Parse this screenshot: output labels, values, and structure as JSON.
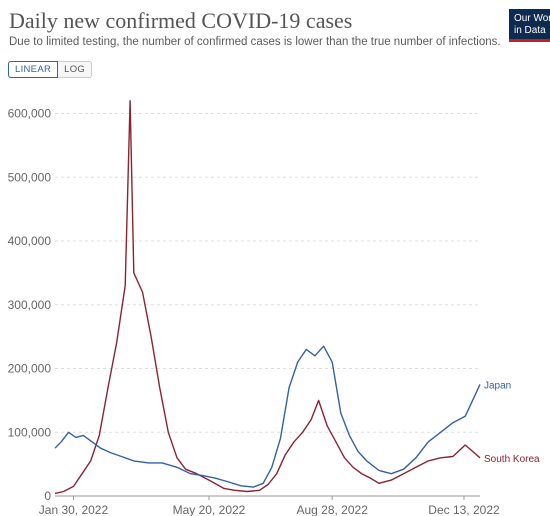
{
  "header": {
    "title": "Daily new confirmed COVID-19 cases",
    "subtitle": "Due to limited testing, the number of confirmed cases is lower than the true number of infections.",
    "logo_line1": "Our World",
    "logo_line2": "in Data"
  },
  "controls": {
    "linear_label": "LINEAR",
    "log_label": "LOG",
    "selected": "LINEAR"
  },
  "colors": {
    "japan": "#3360a9",
    "south_korea": "#8b2332",
    "grid": "#dddddd",
    "logo_bg": "#0e2b4f",
    "logo_accent": "#c0212b"
  },
  "chart_data": {
    "type": "line",
    "x_start": "2022-01-15",
    "x_end": "2022-12-26",
    "ylim": [
      0,
      640000
    ],
    "y_ticks": [
      0,
      100000,
      200000,
      300000,
      400000,
      500000,
      600000
    ],
    "y_tick_labels": [
      "0",
      "100,000",
      "200,000",
      "300,000",
      "400,000",
      "500,000",
      "600,000"
    ],
    "x_ticks": [
      "2022-01-30",
      "2022-05-20",
      "2022-08-28",
      "2022-12-13"
    ],
    "x_tick_labels": [
      "Jan 30, 2022",
      "May 20, 2022",
      "Aug 28, 2022",
      "Dec 13, 2022"
    ],
    "gridlines": true,
    "series": [
      {
        "name": "Japan",
        "color": "#3360a9",
        "end_label": "Japan",
        "points": [
          [
            "2022-01-15",
            75000
          ],
          [
            "2022-01-20",
            85000
          ],
          [
            "2022-01-26",
            100000
          ],
          [
            "2022-02-01",
            92000
          ],
          [
            "2022-02-07",
            95000
          ],
          [
            "2022-02-14",
            85000
          ],
          [
            "2022-02-21",
            75000
          ],
          [
            "2022-03-01",
            68000
          ],
          [
            "2022-03-10",
            62000
          ],
          [
            "2022-03-20",
            55000
          ],
          [
            "2022-04-01",
            52000
          ],
          [
            "2022-04-12",
            52000
          ],
          [
            "2022-04-24",
            45000
          ],
          [
            "2022-05-05",
            35000
          ],
          [
            "2022-05-15",
            32000
          ],
          [
            "2022-05-25",
            28000
          ],
          [
            "2022-06-05",
            22000
          ],
          [
            "2022-06-15",
            16000
          ],
          [
            "2022-06-25",
            14000
          ],
          [
            "2022-07-03",
            20000
          ],
          [
            "2022-07-10",
            45000
          ],
          [
            "2022-07-17",
            90000
          ],
          [
            "2022-07-24",
            170000
          ],
          [
            "2022-07-31",
            210000
          ],
          [
            "2022-08-07",
            230000
          ],
          [
            "2022-08-14",
            220000
          ],
          [
            "2022-08-21",
            235000
          ],
          [
            "2022-08-28",
            210000
          ],
          [
            "2022-09-04",
            130000
          ],
          [
            "2022-09-11",
            95000
          ],
          [
            "2022-09-18",
            70000
          ],
          [
            "2022-09-25",
            55000
          ],
          [
            "2022-10-05",
            40000
          ],
          [
            "2022-10-15",
            35000
          ],
          [
            "2022-10-25",
            42000
          ],
          [
            "2022-11-04",
            60000
          ],
          [
            "2022-11-14",
            85000
          ],
          [
            "2022-11-24",
            100000
          ],
          [
            "2022-12-04",
            115000
          ],
          [
            "2022-12-14",
            125000
          ],
          [
            "2022-12-20",
            150000
          ],
          [
            "2022-12-26",
            175000
          ]
        ]
      },
      {
        "name": "South Korea",
        "color": "#8b2332",
        "end_label": "South Korea",
        "points": [
          [
            "2022-01-15",
            4000
          ],
          [
            "2022-01-22",
            7000
          ],
          [
            "2022-01-30",
            15000
          ],
          [
            "2022-02-06",
            35000
          ],
          [
            "2022-02-13",
            55000
          ],
          [
            "2022-02-20",
            95000
          ],
          [
            "2022-02-27",
            170000
          ],
          [
            "2022-03-06",
            240000
          ],
          [
            "2022-03-13",
            330000
          ],
          [
            "2022-03-17",
            620000
          ],
          [
            "2022-03-20",
            350000
          ],
          [
            "2022-03-27",
            320000
          ],
          [
            "2022-04-03",
            250000
          ],
          [
            "2022-04-10",
            170000
          ],
          [
            "2022-04-17",
            100000
          ],
          [
            "2022-04-24",
            60000
          ],
          [
            "2022-05-01",
            42000
          ],
          [
            "2022-05-10",
            35000
          ],
          [
            "2022-05-20",
            25000
          ],
          [
            "2022-06-01",
            12000
          ],
          [
            "2022-06-10",
            9000
          ],
          [
            "2022-06-20",
            7000
          ],
          [
            "2022-06-30",
            9000
          ],
          [
            "2022-07-07",
            18000
          ],
          [
            "2022-07-14",
            35000
          ],
          [
            "2022-07-21",
            65000
          ],
          [
            "2022-07-28",
            85000
          ],
          [
            "2022-08-04",
            100000
          ],
          [
            "2022-08-11",
            120000
          ],
          [
            "2022-08-17",
            150000
          ],
          [
            "2022-08-24",
            110000
          ],
          [
            "2022-08-31",
            85000
          ],
          [
            "2022-09-07",
            60000
          ],
          [
            "2022-09-14",
            45000
          ],
          [
            "2022-09-21",
            35000
          ],
          [
            "2022-09-28",
            28000
          ],
          [
            "2022-10-05",
            20000
          ],
          [
            "2022-10-15",
            25000
          ],
          [
            "2022-10-25",
            35000
          ],
          [
            "2022-11-04",
            45000
          ],
          [
            "2022-11-14",
            55000
          ],
          [
            "2022-11-24",
            60000
          ],
          [
            "2022-12-04",
            62000
          ],
          [
            "2022-12-14",
            80000
          ],
          [
            "2022-12-20",
            70000
          ],
          [
            "2022-12-26",
            60000
          ]
        ]
      }
    ]
  }
}
